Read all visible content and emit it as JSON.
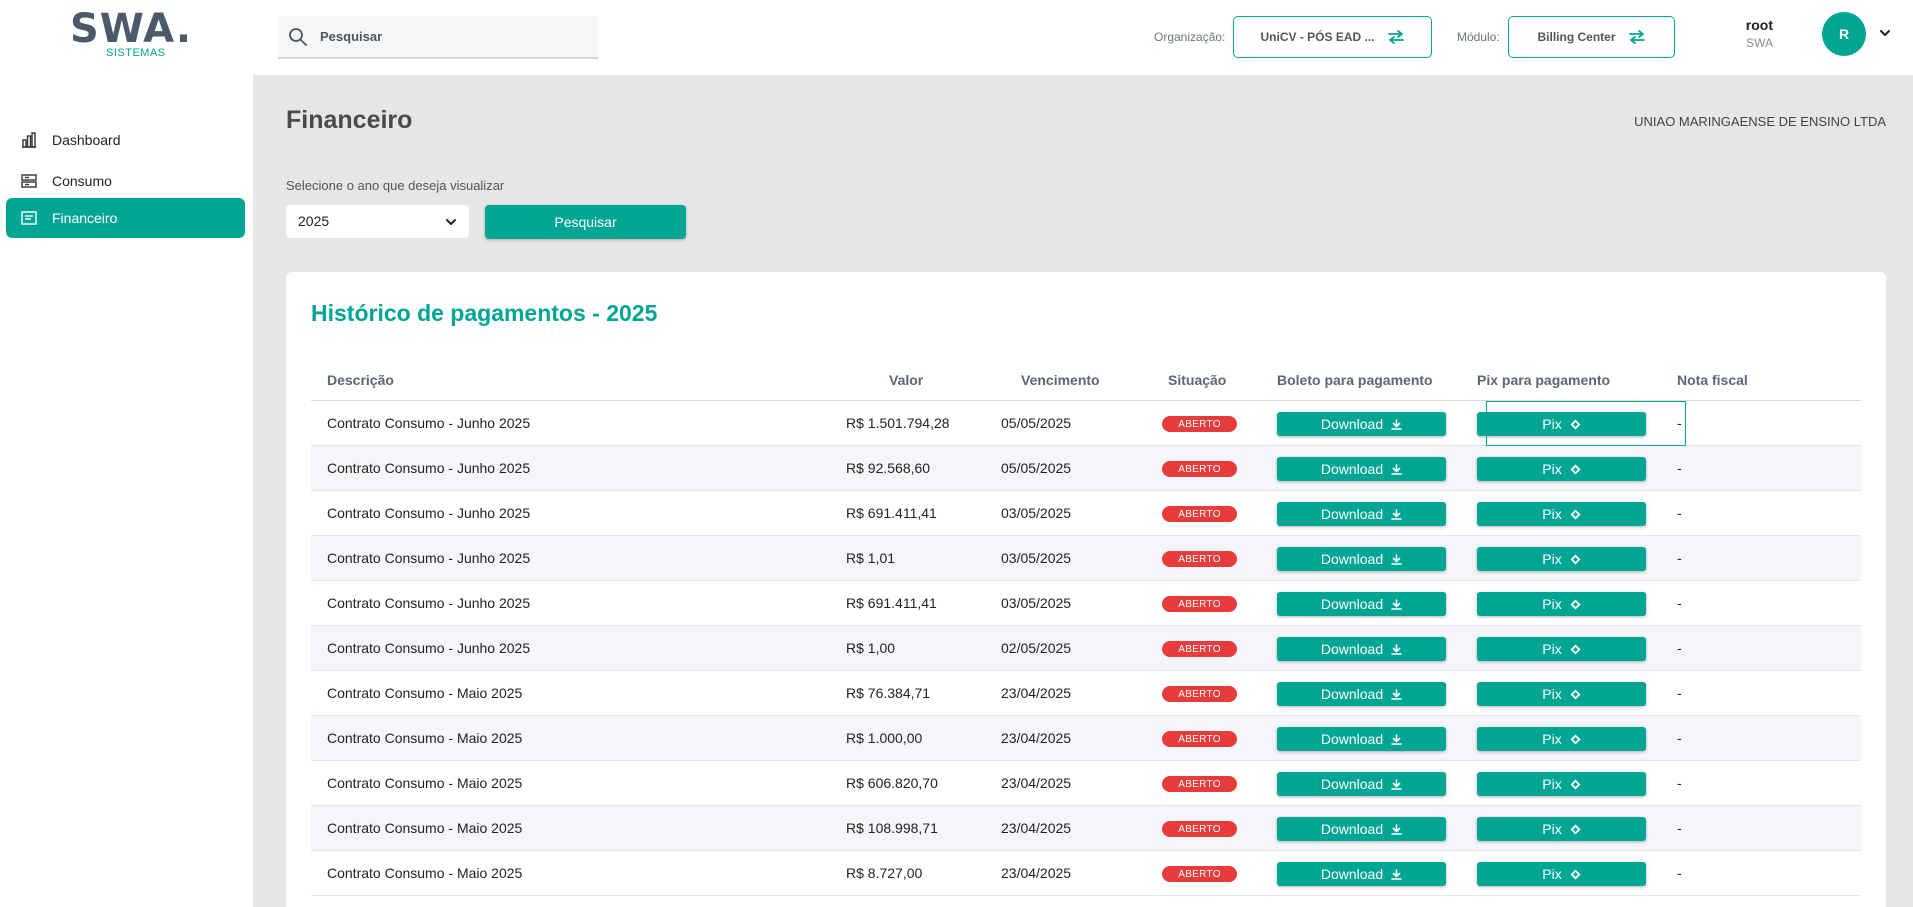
{
  "header": {
    "logo_text": "SWA.",
    "logo_sub": "SISTEMAS",
    "search_placeholder": "Pesquisar",
    "org_label": "Organização:",
    "org_value": "UniCV - PÓS EAD ...",
    "module_label": "Módulo:",
    "module_value": "Billing Center",
    "user_name": "root",
    "user_org": "SWA",
    "avatar_letter": "R"
  },
  "sidebar": {
    "items": [
      {
        "label": "Dashboard",
        "icon": "bar-chart-icon",
        "active": false
      },
      {
        "label": "Consumo",
        "icon": "server-icon",
        "active": false
      },
      {
        "label": "Financeiro",
        "icon": "receipt-icon",
        "active": true
      }
    ]
  },
  "main": {
    "title": "Financeiro",
    "company": "UNIAO MARINGAENSE DE ENSINO LTDA",
    "year_label": "Selecione o ano que deseja visualizar",
    "year_value": "2025",
    "search_button": "Pesquisar"
  },
  "table": {
    "title": "Histórico de pagamentos - 2025",
    "columns": [
      "Descrição",
      "Valor",
      "Vencimento",
      "Situação",
      "Boleto para pagamento",
      "Pix para pagamento",
      "Nota fiscal"
    ],
    "download_label": "Download",
    "pix_label": "Pix",
    "rows": [
      {
        "descricao": "Contrato Consumo - Junho 2025",
        "valor": "R$ 1.501.794,28",
        "vencimento": "05/05/2025",
        "situacao": "ABERTO",
        "nota": "-"
      },
      {
        "descricao": "Contrato Consumo - Junho 2025",
        "valor": "R$ 92.568,60",
        "vencimento": "05/05/2025",
        "situacao": "ABERTO",
        "nota": "-"
      },
      {
        "descricao": "Contrato Consumo - Junho 2025",
        "valor": "R$ 691.411,41",
        "vencimento": "03/05/2025",
        "situacao": "ABERTO",
        "nota": "-"
      },
      {
        "descricao": "Contrato Consumo - Junho 2025",
        "valor": "R$ 1,01",
        "vencimento": "03/05/2025",
        "situacao": "ABERTO",
        "nota": "-"
      },
      {
        "descricao": "Contrato Consumo - Junho 2025",
        "valor": "R$ 691.411,41",
        "vencimento": "03/05/2025",
        "situacao": "ABERTO",
        "nota": "-"
      },
      {
        "descricao": "Contrato Consumo - Junho 2025",
        "valor": "R$ 1,00",
        "vencimento": "02/05/2025",
        "situacao": "ABERTO",
        "nota": "-"
      },
      {
        "descricao": "Contrato Consumo - Maio 2025",
        "valor": "R$ 76.384,71",
        "vencimento": "23/04/2025",
        "situacao": "ABERTO",
        "nota": "-"
      },
      {
        "descricao": "Contrato Consumo - Maio 2025",
        "valor": "R$ 1.000,00",
        "vencimento": "23/04/2025",
        "situacao": "ABERTO",
        "nota": "-"
      },
      {
        "descricao": "Contrato Consumo - Maio 2025",
        "valor": "R$ 606.820,70",
        "vencimento": "23/04/2025",
        "situacao": "ABERTO",
        "nota": "-"
      },
      {
        "descricao": "Contrato Consumo - Maio 2025",
        "valor": "R$ 108.998,71",
        "vencimento": "23/04/2025",
        "situacao": "ABERTO",
        "nota": "-"
      },
      {
        "descricao": "Contrato Consumo - Maio 2025",
        "valor": "R$ 8.727,00",
        "vencimento": "23/04/2025",
        "situacao": "ABERTO",
        "nota": "-"
      }
    ]
  },
  "colors": {
    "accent": "#00a693",
    "status_open": "#e83b3b",
    "background": "#e6e6e6"
  }
}
